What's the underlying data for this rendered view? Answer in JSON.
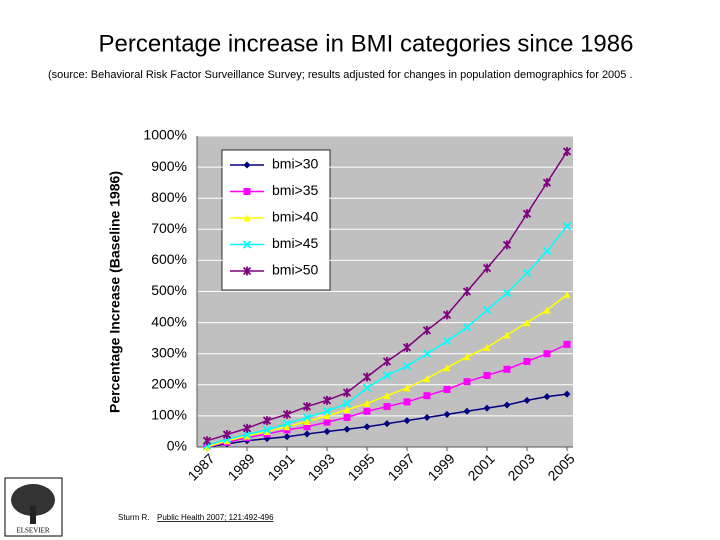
{
  "chart_data": {
    "type": "line",
    "title": "Percentage increase in BMI categories since 1986",
    "subtitle": "(source: Behavioral Risk Factor Surveillance Survey; results adjusted for changes in population demographics  for 2005 .",
    "y_label": "Percentage Increase (Baseline 1986)",
    "x": [
      1987,
      1988,
      1989,
      1990,
      1991,
      1992,
      1993,
      1994,
      1995,
      1996,
      1997,
      1998,
      1999,
      2000,
      2001,
      2002,
      2003,
      2004,
      2005
    ],
    "xlim": [
      1986.5,
      2005.3
    ],
    "xticks": [
      1987,
      1989,
      1991,
      1993,
      1995,
      1997,
      1999,
      2001,
      2003,
      2005
    ],
    "ylim": [
      0,
      1000
    ],
    "yticks": [
      {
        "value": 0,
        "label": "0%"
      },
      {
        "value": 100,
        "label": "100%"
      },
      {
        "value": 200,
        "label": "200%"
      },
      {
        "value": 300,
        "label": "300%"
      },
      {
        "value": 400,
        "label": "400%"
      },
      {
        "value": 500,
        "label": "500%"
      },
      {
        "value": 600,
        "label": "600%"
      },
      {
        "value": 700,
        "label": "700%"
      },
      {
        "value": 800,
        "label": "800%"
      },
      {
        "value": 900,
        "label": "900%"
      },
      {
        "value": 1000,
        "label": "1000%"
      }
    ],
    "grid": true,
    "legend": "upper left",
    "series": [
      {
        "name": "bmi>30",
        "color": "#000080",
        "marker": "diamond",
        "values": [
          0,
          10,
          20,
          27,
          33,
          42,
          50,
          57,
          65,
          75,
          85,
          95,
          105,
          115,
          125,
          135,
          150,
          162,
          170
        ]
      },
      {
        "name": "bmi>35",
        "color": "#ff00ff",
        "marker": "square",
        "values": [
          0,
          15,
          30,
          42,
          55,
          65,
          80,
          95,
          115,
          130,
          145,
          165,
          185,
          210,
          230,
          250,
          275,
          300,
          330
        ]
      },
      {
        "name": "bmi>40",
        "color": "#ffff00",
        "marker": "triangle",
        "values": [
          0,
          20,
          35,
          50,
          65,
          82,
          100,
          120,
          140,
          165,
          190,
          220,
          255,
          290,
          320,
          360,
          400,
          440,
          490
        ]
      },
      {
        "name": "bmi>45",
        "color": "#00ffff",
        "marker": "x",
        "values": [
          5,
          25,
          40,
          55,
          75,
          95,
          115,
          140,
          190,
          230,
          260,
          300,
          340,
          385,
          440,
          495,
          560,
          630,
          710
        ]
      },
      {
        "name": "bmi>50",
        "color": "#800080",
        "marker": "star",
        "values": [
          20,
          40,
          60,
          85,
          105,
          130,
          150,
          175,
          225,
          275,
          320,
          375,
          425,
          500,
          575,
          650,
          750,
          850,
          950
        ]
      }
    ]
  },
  "citation": {
    "author": "Sturm R.",
    "source": "Public Health 2007; 121:492-496"
  },
  "logo_text": "ELSEVIER"
}
